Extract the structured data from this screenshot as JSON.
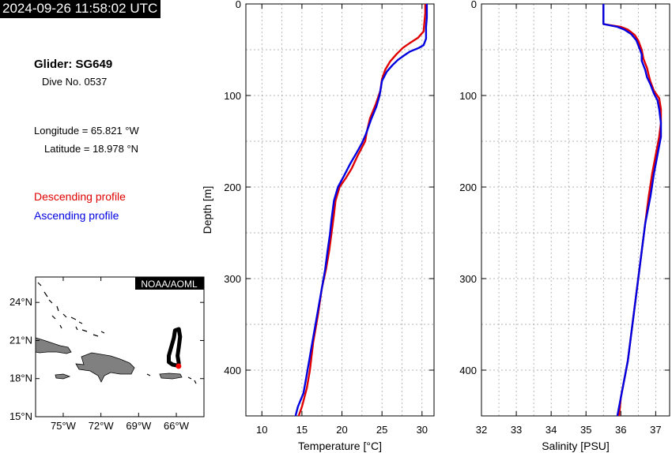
{
  "timestamp": "2024-09-26 11:58:02 UTC",
  "glider": {
    "name": "Glider: SG649",
    "dive": "Dive No. 0537",
    "longitude": "Longitude = 65.821 °W",
    "latitude": "Latitude = 18.978 °N"
  },
  "legend": {
    "descending": "Descending profile",
    "ascending": "Ascending profile",
    "descending_color": "#e00000",
    "ascending_color": "#0000e0"
  },
  "map": {
    "credit": "NOAA/AOML",
    "lat_ticks": [
      "24°N",
      "21°N",
      "18°N",
      "15°N"
    ],
    "lon_ticks": [
      "75°W",
      "72°W",
      "69°W",
      "66°W"
    ],
    "lat_values": [
      24,
      21,
      18,
      15
    ],
    "lon_values": [
      -75,
      -72,
      -69,
      -66
    ],
    "lon_range": [
      -77.2,
      -63.8
    ],
    "lat_range": [
      15,
      26
    ],
    "track": [
      [
        -65.8,
        19.0
      ],
      [
        -66.3,
        19.1
      ],
      [
        -66.6,
        19.3
      ],
      [
        -66.6,
        19.8
      ],
      [
        -66.4,
        20.5
      ],
      [
        -66.2,
        21.2
      ],
      [
        -66.1,
        21.8
      ],
      [
        -65.8,
        21.9
      ],
      [
        -65.7,
        21.3
      ],
      [
        -65.8,
        20.5
      ],
      [
        -65.9,
        19.8
      ],
      [
        -65.8,
        19.2
      ]
    ],
    "position": [
      -65.82,
      18.98
    ],
    "land_color": "#808080"
  },
  "chart_data": [
    {
      "type": "line",
      "xlabel": "Temperature [°C]",
      "ylabel": "Depth [m]",
      "xlim": [
        8,
        31.5
      ],
      "ylim": [
        0,
        450
      ],
      "y_inverted": true,
      "xticks": [
        10,
        15,
        20,
        25,
        30
      ],
      "yticks": [
        0,
        100,
        200,
        300,
        400
      ],
      "grid": true,
      "series": [
        {
          "name": "Descending profile",
          "color": "#e00000",
          "points": [
            [
              30.4,
              0
            ],
            [
              30.4,
              10
            ],
            [
              30.3,
              20
            ],
            [
              30.2,
              30
            ],
            [
              29.5,
              37
            ],
            [
              28.6,
              42
            ],
            [
              27.6,
              48
            ],
            [
              26.8,
              55
            ],
            [
              26.0,
              63
            ],
            [
              25.4,
              72
            ],
            [
              25.0,
              82
            ],
            [
              24.8,
              95
            ],
            [
              24.2,
              110
            ],
            [
              23.5,
              125
            ],
            [
              23.1,
              140
            ],
            [
              22.9,
              150
            ],
            [
              22.0,
              165
            ],
            [
              21.2,
              180
            ],
            [
              20.5,
              190
            ],
            [
              19.7,
              200
            ],
            [
              19.2,
              215
            ],
            [
              19.0,
              230
            ],
            [
              18.7,
              250
            ],
            [
              18.4,
              270
            ],
            [
              18.0,
              290
            ],
            [
              17.5,
              310
            ],
            [
              17.0,
              340
            ],
            [
              16.4,
              370
            ],
            [
              16.0,
              400
            ],
            [
              15.6,
              420
            ],
            [
              15.0,
              440
            ],
            [
              14.6,
              450
            ]
          ]
        },
        {
          "name": "Ascending profile",
          "color": "#0000e0",
          "points": [
            [
              30.6,
              0
            ],
            [
              30.6,
              15
            ],
            [
              30.5,
              25
            ],
            [
              30.5,
              38
            ],
            [
              30.2,
              45
            ],
            [
              29.6,
              48
            ],
            [
              28.5,
              52
            ],
            [
              27.8,
              56
            ],
            [
              27.0,
              61
            ],
            [
              26.3,
              67
            ],
            [
              25.6,
              74
            ],
            [
              25.0,
              84
            ],
            [
              24.7,
              100
            ],
            [
              24.3,
              112
            ],
            [
              23.6,
              127
            ],
            [
              23.0,
              142
            ],
            [
              22.5,
              152
            ],
            [
              21.8,
              163
            ],
            [
              21.0,
              175
            ],
            [
              20.3,
              187
            ],
            [
              19.5,
              200
            ],
            [
              19.0,
              215
            ],
            [
              18.7,
              235
            ],
            [
              18.5,
              252
            ],
            [
              18.2,
              270
            ],
            [
              17.9,
              290
            ],
            [
              17.4,
              315
            ],
            [
              16.8,
              345
            ],
            [
              16.2,
              375
            ],
            [
              15.6,
              405
            ],
            [
              15.2,
              425
            ],
            [
              14.5,
              440
            ],
            [
              14.2,
              450
            ]
          ]
        }
      ]
    },
    {
      "type": "line",
      "xlabel": "Salinity [PSU]",
      "ylabel": "",
      "xlim": [
        32,
        37.4
      ],
      "ylim": [
        0,
        450
      ],
      "y_inverted": true,
      "xticks": [
        32,
        33,
        34,
        35,
        36,
        37
      ],
      "yticks": [
        0,
        100,
        200,
        300,
        400
      ],
      "grid": true,
      "series": [
        {
          "name": "Descending profile",
          "color": "#e00000",
          "points": [
            [
              35.5,
              0
            ],
            [
              35.5,
              22
            ],
            [
              36.0,
              25
            ],
            [
              36.2,
              28
            ],
            [
              36.4,
              34
            ],
            [
              36.5,
              40
            ],
            [
              36.6,
              50
            ],
            [
              36.65,
              60
            ],
            [
              36.75,
              70
            ],
            [
              36.8,
              78
            ],
            [
              36.85,
              85
            ],
            [
              36.95,
              95
            ],
            [
              37.1,
              103
            ],
            [
              37.15,
              115
            ],
            [
              37.15,
              130
            ],
            [
              37.1,
              145
            ],
            [
              37.0,
              165
            ],
            [
              36.9,
              185
            ],
            [
              36.8,
              210
            ],
            [
              36.7,
              240
            ],
            [
              36.6,
              270
            ],
            [
              36.5,
              300
            ],
            [
              36.4,
              330
            ],
            [
              36.3,
              360
            ],
            [
              36.2,
              390
            ],
            [
              36.1,
              410
            ],
            [
              36.0,
              430
            ],
            [
              35.95,
              450
            ]
          ]
        },
        {
          "name": "Ascending profile",
          "color": "#0000e0",
          "points": [
            [
              35.5,
              0
            ],
            [
              35.5,
              22
            ],
            [
              35.9,
              25
            ],
            [
              36.1,
              28
            ],
            [
              36.3,
              33
            ],
            [
              36.45,
              40
            ],
            [
              36.55,
              50
            ],
            [
              36.6,
              55
            ],
            [
              36.6,
              62
            ],
            [
              36.7,
              72
            ],
            [
              36.75,
              80
            ],
            [
              36.85,
              88
            ],
            [
              36.95,
              98
            ],
            [
              37.05,
              105
            ],
            [
              37.1,
              115
            ],
            [
              37.15,
              130
            ],
            [
              37.15,
              145
            ],
            [
              37.05,
              165
            ],
            [
              36.95,
              185
            ],
            [
              36.85,
              210
            ],
            [
              36.7,
              240
            ],
            [
              36.6,
              270
            ],
            [
              36.5,
              300
            ],
            [
              36.4,
              330
            ],
            [
              36.3,
              360
            ],
            [
              36.2,
              390
            ],
            [
              36.1,
              410
            ],
            [
              36.0,
              430
            ],
            [
              35.9,
              450
            ]
          ]
        }
      ]
    }
  ]
}
